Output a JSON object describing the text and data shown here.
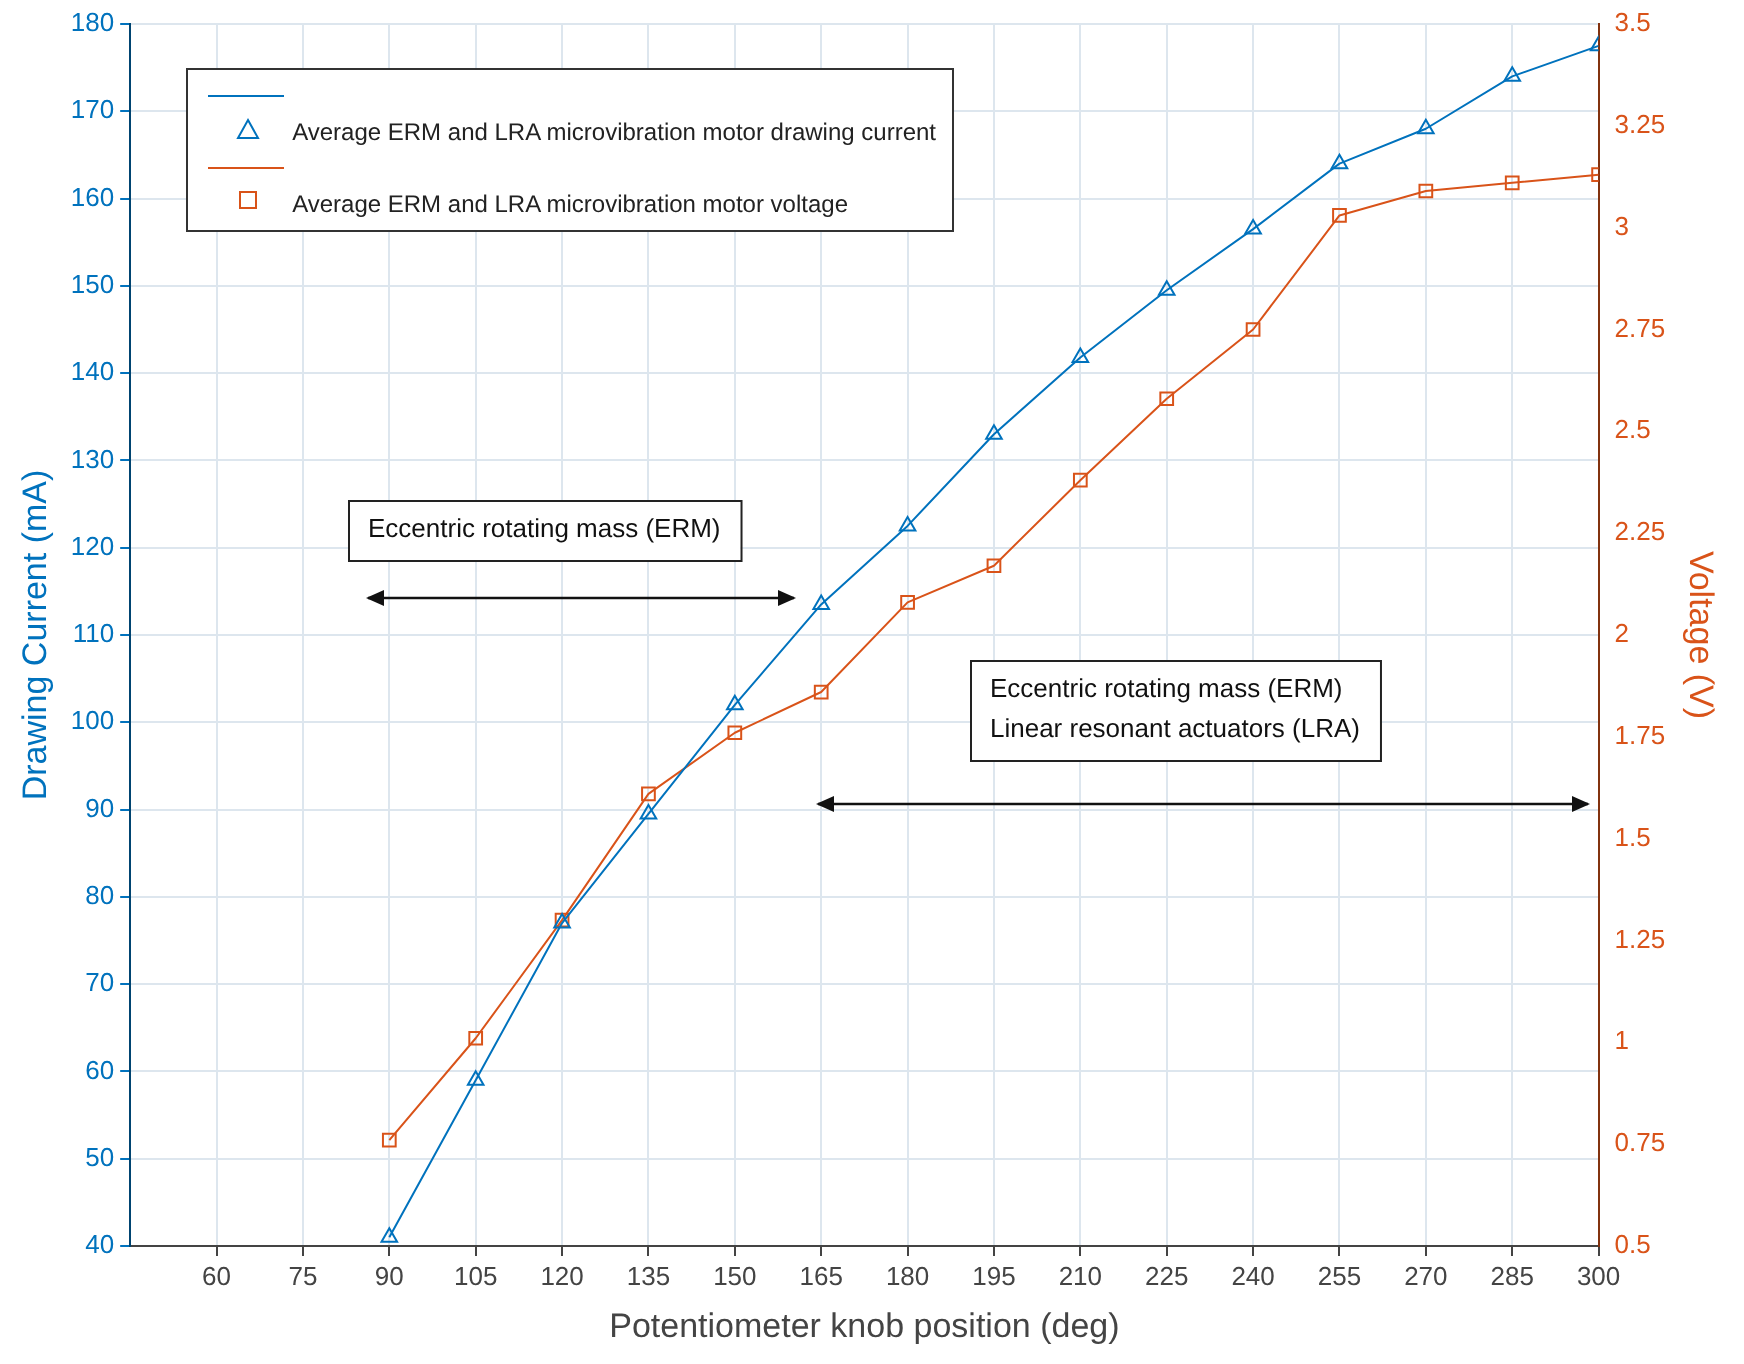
{
  "chart_data": {
    "type": "line",
    "xlabel": "Potentiometer knob position (deg)",
    "ylabel": "Drawing Current (mA)",
    "y2label": "Voltage (V)",
    "x": [
      90,
      105,
      120,
      135,
      150,
      165,
      180,
      195,
      210,
      225,
      240,
      255,
      270,
      285,
      300
    ],
    "series": [
      {
        "name": "Average ERM and LRA microvibration motor drawing current",
        "color": "#0072bd",
        "marker": "triangle",
        "values": [
          41,
          59,
          77,
          89.5,
          102,
          113.5,
          122.5,
          133,
          141.8,
          149.5,
          156.5,
          164,
          168,
          174,
          177.5
        ]
      },
      {
        "name": "Average ERM and LRA microvibration motor voltage",
        "color": "#d95319",
        "marker": "square",
        "axis": "y2",
        "values": [
          0.76,
          1.01,
          1.3,
          1.61,
          1.76,
          1.86,
          2.08,
          2.17,
          2.38,
          2.58,
          2.75,
          3.03,
          3.09,
          3.11,
          3.13
        ]
      }
    ],
    "xlim": [
      45,
      300
    ],
    "xticks": [
      60,
      75,
      90,
      105,
      120,
      135,
      150,
      165,
      180,
      195,
      210,
      225,
      240,
      255,
      270,
      285,
      300
    ],
    "ylim": [
      40,
      180
    ],
    "yticks": [
      40,
      50,
      60,
      70,
      80,
      90,
      100,
      110,
      120,
      130,
      140,
      150,
      160,
      170,
      180
    ],
    "y2lim": [
      0.5,
      3.5
    ],
    "y2ticks": [
      0.5,
      0.75,
      1,
      1.25,
      1.5,
      1.75,
      2,
      2.25,
      2.5,
      2.75,
      3,
      3.25,
      3.5
    ],
    "grid": true,
    "legend": "top left",
    "line_style": "solid",
    "annotations": [
      "Eccentric rotating mass (ERM)",
      "Eccentric rotating mass (ERM)\nLinear resonant actuators (LRA)"
    ]
  }
}
